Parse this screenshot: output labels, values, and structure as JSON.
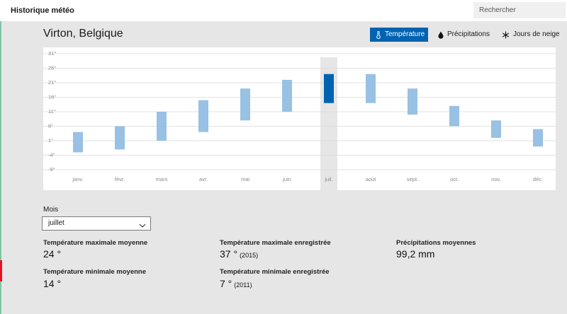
{
  "app": {
    "title": "Historique météo"
  },
  "search": {
    "placeholder": "Rechercher"
  },
  "location": {
    "name": "Virton, Belgique"
  },
  "tabs": [
    {
      "label": "Température",
      "icon": "thermometer-icon",
      "active": true
    },
    {
      "label": "Précipitations",
      "icon": "drop-icon",
      "active": false
    },
    {
      "label": "Jours de neige",
      "icon": "snowflake-icon",
      "active": false
    }
  ],
  "colors": {
    "accent": "#0063b1",
    "bar": "#98c1e4",
    "selected_bar": "#0063b1"
  },
  "chart_data": {
    "type": "bar",
    "subtype": "floating-range",
    "y_tick_labels": [
      "31°",
      "26°",
      "21°",
      "16°",
      "11°",
      "6°",
      "1°",
      "-4°",
      "-9°"
    ],
    "ylim": [
      -9,
      31
    ],
    "grid": true,
    "categories": [
      "janv.",
      "févr.",
      "mars",
      "avr.",
      "mai",
      "juin",
      "juil.",
      "août",
      "sept.",
      "oct.",
      "nov.",
      "déc."
    ],
    "series": [
      {
        "values_min": [
          -3,
          -2,
          1,
          4,
          8,
          11,
          14,
          14,
          10,
          6,
          2,
          -1
        ],
        "values_max": [
          4,
          6,
          11,
          15,
          19,
          22,
          24,
          24,
          19,
          13,
          8,
          5
        ]
      }
    ],
    "selected_index": 6
  },
  "month_selector": {
    "label": "Mois",
    "value": "juillet"
  },
  "stats": {
    "max_avg": {
      "label": "Température maximale moyenne",
      "value": "24 °"
    },
    "min_avg": {
      "label": "Température minimale moyenne",
      "value": "14 °"
    },
    "max_rec": {
      "label": "Température maximale enregistrée",
      "value": "37 °",
      "year": "(2015)"
    },
    "min_rec": {
      "label": "Température minimale enregistrée",
      "value": "7 °",
      "year": "(2011)"
    },
    "precip": {
      "label": "Précipitations moyennes",
      "value": "99,2 mm"
    }
  }
}
